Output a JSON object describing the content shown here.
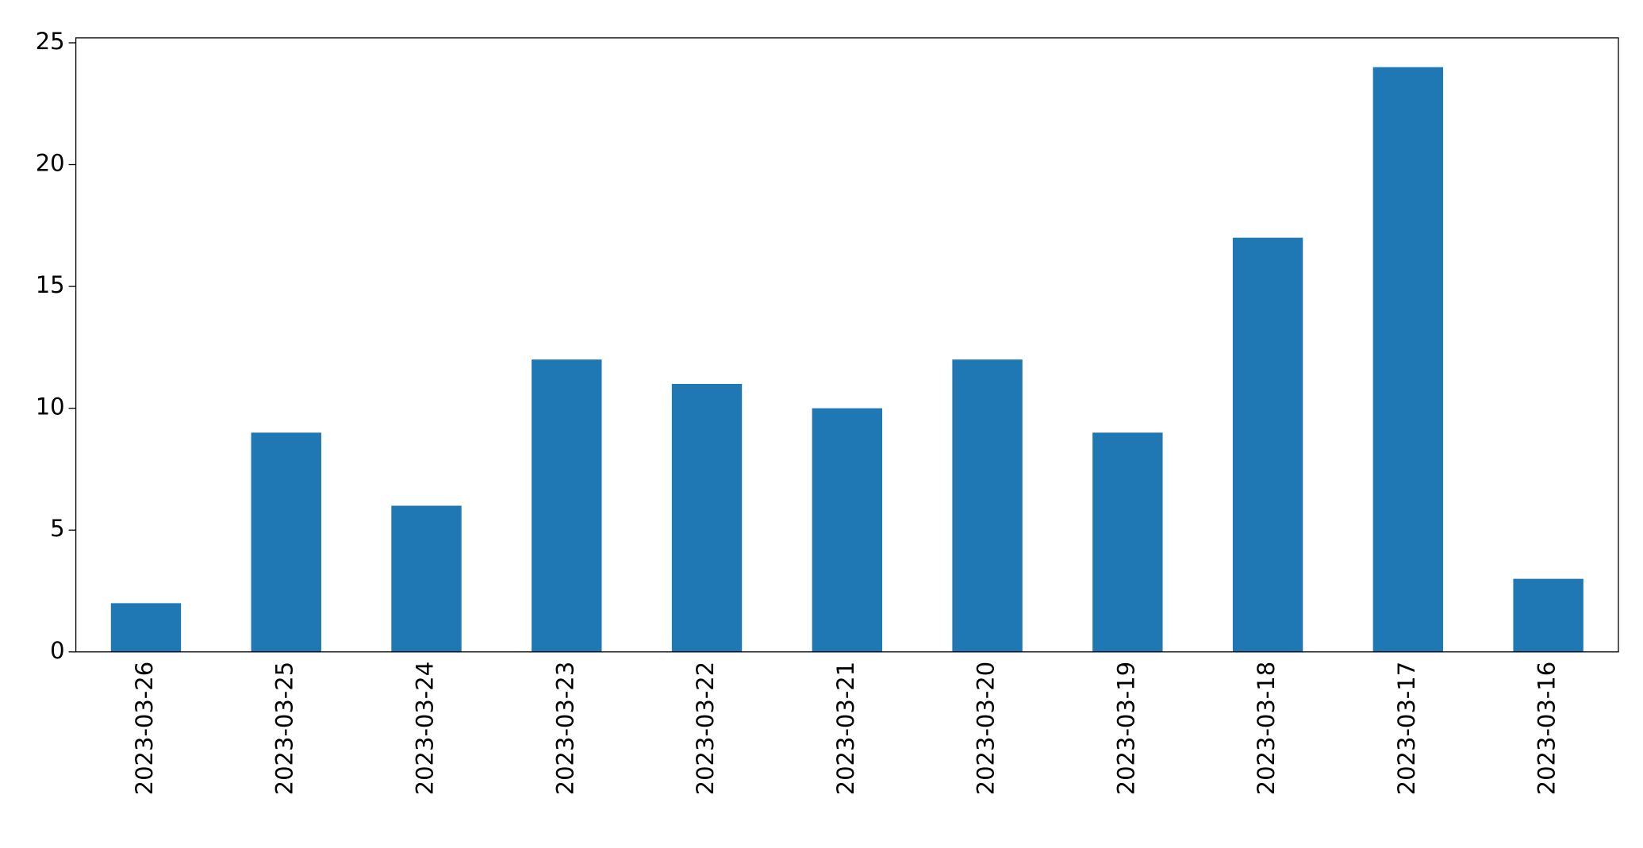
{
  "chart_data": {
    "type": "bar",
    "categories": [
      "2023-03-26",
      "2023-03-25",
      "2023-03-24",
      "2023-03-23",
      "2023-03-22",
      "2023-03-21",
      "2023-03-20",
      "2023-03-19",
      "2023-03-18",
      "2023-03-17",
      "2023-03-16"
    ],
    "values": [
      2,
      9,
      6,
      12,
      11,
      10,
      12,
      9,
      17,
      24,
      3
    ],
    "color": "#1f77b4",
    "ylim": [
      0,
      25.2
    ],
    "yticks": [
      0,
      5,
      10,
      15,
      20,
      25
    ],
    "grid": false
  }
}
